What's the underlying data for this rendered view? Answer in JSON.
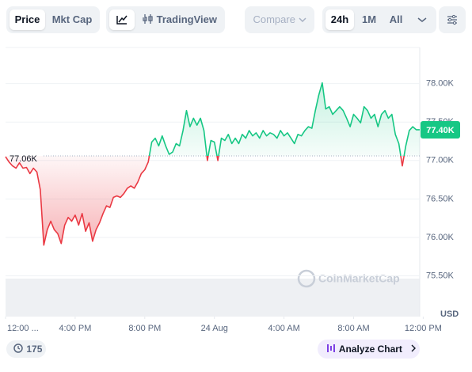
{
  "toolbar": {
    "tabs": [
      "Price",
      "Mkt Cap"
    ],
    "active_tab": 0,
    "trading_view": "TradingView",
    "compare": "Compare",
    "ranges": [
      "24h",
      "1M",
      "All"
    ],
    "active_range": 0
  },
  "chart_data": {
    "type": "line",
    "x": [
      0,
      0.2,
      0.4,
      0.6,
      0.8,
      1,
      1.2,
      1.4,
      1.6,
      1.8,
      2,
      2.2,
      2.4,
      2.6,
      2.8,
      3,
      3.2,
      3.4,
      3.6,
      3.8,
      4,
      4.2,
      4.4,
      4.6,
      4.8,
      5,
      5.2,
      5.4,
      5.6,
      5.8,
      6,
      6.2,
      6.4,
      6.6,
      6.8,
      7,
      7.2,
      7.4,
      7.6,
      7.8,
      8,
      8.2,
      8.4,
      8.6,
      8.8,
      9,
      9.2,
      9.4,
      9.6,
      9.8,
      10,
      10.2,
      10.4,
      10.6,
      10.8,
      11,
      11.2,
      11.4,
      11.6,
      11.8,
      12,
      12.2,
      12.4,
      12.6,
      12.8,
      13,
      13.2,
      13.4,
      13.6,
      13.8,
      14,
      14.2,
      14.4,
      14.6,
      14.8,
      15,
      15.2,
      15.4,
      15.6,
      15.8,
      16,
      16.2,
      16.4,
      16.6,
      16.8,
      17,
      17.2,
      17.4,
      17.6,
      17.8,
      18,
      18.2,
      18.4,
      18.6,
      18.8,
      19,
      19.2,
      19.4,
      19.6,
      19.8,
      20,
      20.2,
      20.4,
      20.6,
      20.8,
      21,
      21.2,
      21.4,
      21.6,
      21.8,
      22,
      22.2,
      22.4,
      22.6,
      22.8,
      23,
      23.2,
      23.4,
      23.6,
      23.8
    ],
    "values": [
      77050,
      76980,
      76930,
      76900,
      76970,
      76900,
      76910,
      76830,
      76900,
      76850,
      76620,
      75900,
      76100,
      76210,
      76100,
      76050,
      75920,
      76160,
      76260,
      76210,
      76290,
      76160,
      76310,
      76080,
      76190,
      75950,
      76100,
      76190,
      76310,
      76410,
      76390,
      76520,
      76540,
      76520,
      76570,
      76640,
      76670,
      76640,
      76720,
      76830,
      76880,
      76980,
      77240,
      77290,
      77190,
      77320,
      77190,
      77080,
      77110,
      77220,
      77190,
      77390,
      77650,
      77440,
      77550,
      77460,
      77550,
      77390,
      77000,
      77260,
      77240,
      77000,
      77290,
      77260,
      77340,
      77220,
      77290,
      77220,
      77340,
      77290,
      77390,
      77320,
      77360,
      77290,
      77390,
      77320,
      77360,
      77340,
      77290,
      77390,
      77320,
      77360,
      77290,
      77220,
      77340,
      77320,
      77390,
      77440,
      77420,
      77650,
      77850,
      78010,
      77670,
      77700,
      77600,
      77650,
      77700,
      77650,
      77550,
      77440,
      77600,
      77550,
      77490,
      77700,
      77650,
      77550,
      77600,
      77440,
      77600,
      77650,
      77550,
      77600,
      77340,
      77220,
      76930,
      77190,
      77390,
      77440,
      77400,
      77400
    ],
    "up_color": "#16c784",
    "down_color": "#ea3943",
    "baseline": 77060,
    "baseline_label": "77.06K",
    "last_label": "77.40K",
    "xlim": [
      0,
      23.8
    ],
    "xticks": [
      {
        "value": 0,
        "label": "12:00 ..."
      },
      {
        "value": 4,
        "label": "4:00 PM"
      },
      {
        "value": 8,
        "label": "8:00 PM"
      },
      {
        "value": 12,
        "label": "24 Aug"
      },
      {
        "value": 16,
        "label": "4:00 AM"
      },
      {
        "value": 20,
        "label": "8:00 AM"
      },
      {
        "value": 24,
        "label": "12:00 PM"
      }
    ],
    "ylim": [
      74970,
      78470
    ],
    "yticks": [
      {
        "value": 75500,
        "label": "75.50K"
      },
      {
        "value": 76000,
        "label": "76.00K"
      },
      {
        "value": 76500,
        "label": "76.50K"
      },
      {
        "value": 77000,
        "label": "77.00K"
      },
      {
        "value": 77500,
        "label": "77.50K"
      },
      {
        "value": 78000,
        "label": "78.00K"
      }
    ],
    "grid": true,
    "y_unit": "USD",
    "watermark": "CoinMarketCap"
  },
  "footer": {
    "count": "175",
    "analyze": "Analyze Chart"
  }
}
